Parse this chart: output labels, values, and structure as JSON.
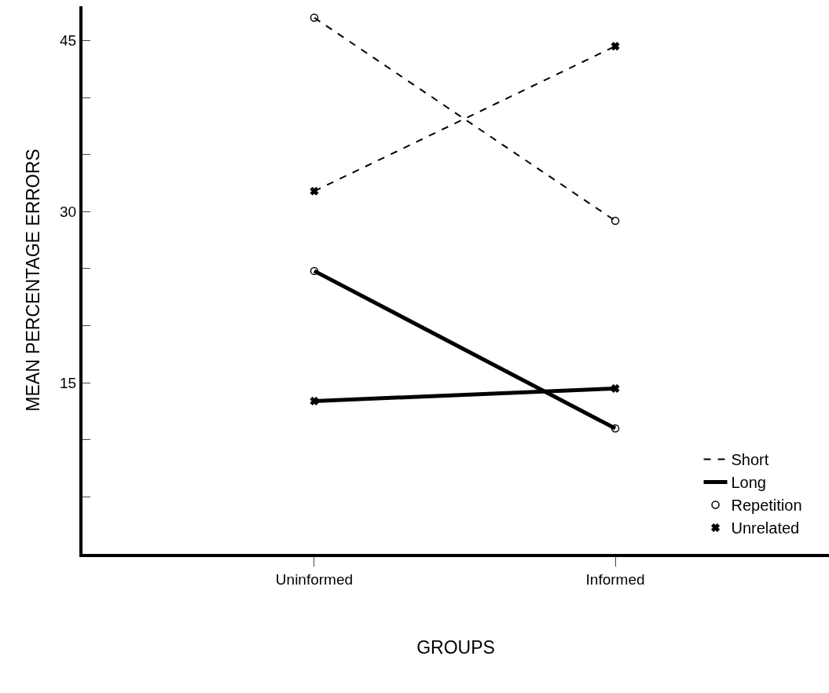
{
  "chart_data": {
    "type": "line",
    "xlabel": "GROUPS",
    "ylabel": "MEAN PERCENTAGE ERRORS",
    "categories": [
      "Uninformed",
      "Informed"
    ],
    "ylim": [
      0,
      48
    ],
    "yticks": [
      {
        "value": 5,
        "label": null
      },
      {
        "value": 10,
        "label": null
      },
      15,
      {
        "value": 20,
        "label": null
      },
      {
        "value": 25,
        "label": null
      },
      30,
      {
        "value": 35,
        "label": null
      },
      {
        "value": 40,
        "label": null
      },
      45
    ],
    "legend": "bottom right",
    "series": [
      {
        "color": "#040404",
        "line_style": "dashed",
        "marker": "circle",
        "values": [
          47,
          29.2
        ]
      },
      {
        "color": "#010101",
        "line_style": "dashed",
        "marker": "cross",
        "values": [
          31.8,
          44.5
        ]
      },
      {
        "color": "#020202",
        "line_style": "solid",
        "marker": "circle",
        "values": [
          24.8,
          11
        ]
      },
      {
        "color": "#030303",
        "line_style": "solid",
        "marker": "cross",
        "values": [
          13.4,
          14.5
        ]
      },
      {
        "name": "Short",
        "color": "#000000",
        "line_style": "dashed",
        "marker": "none",
        "values": [
          null,
          null
        ]
      },
      {
        "name": "Long",
        "color": "#000000",
        "line_style": "solid",
        "marker": "none",
        "values": [
          null,
          null
        ]
      },
      {
        "name": "Repetition",
        "color": "#000000",
        "line_style": "none",
        "marker": "circle",
        "values": [
          null,
          null
        ]
      },
      {
        "name": "Unrelated",
        "color": "#000000",
        "line_style": "none",
        "marker": "cross",
        "values": [
          null,
          null
        ]
      }
    ]
  }
}
